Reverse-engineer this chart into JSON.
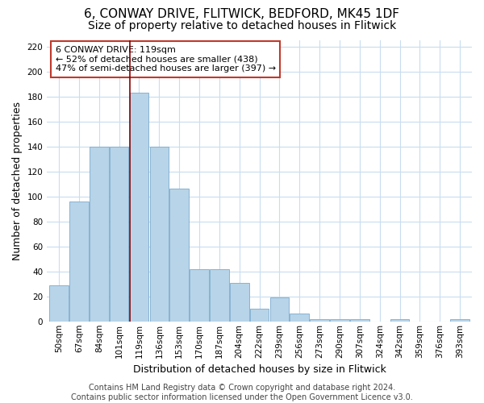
{
  "title": "6, CONWAY DRIVE, FLITWICK, BEDFORD, MK45 1DF",
  "subtitle": "Size of property relative to detached houses in Flitwick",
  "xlabel": "Distribution of detached houses by size in Flitwick",
  "ylabel": "Number of detached properties",
  "bar_labels": [
    "50sqm",
    "67sqm",
    "84sqm",
    "101sqm",
    "119sqm",
    "136sqm",
    "153sqm",
    "170sqm",
    "187sqm",
    "204sqm",
    "222sqm",
    "239sqm",
    "256sqm",
    "273sqm",
    "290sqm",
    "307sqm",
    "324sqm",
    "342sqm",
    "359sqm",
    "376sqm",
    "393sqm"
  ],
  "bar_values": [
    29,
    96,
    140,
    140,
    183,
    140,
    106,
    42,
    42,
    31,
    10,
    19,
    6,
    2,
    2,
    2,
    0,
    2,
    0,
    0,
    2
  ],
  "bar_color": "#b8d4e8",
  "bar_edge_color": "#7aaacf",
  "highlight_bar_index": 4,
  "highlight_line_color": "#8b0000",
  "ylim": [
    0,
    225
  ],
  "yticks": [
    0,
    20,
    40,
    60,
    80,
    100,
    120,
    140,
    160,
    180,
    200,
    220
  ],
  "annotation_box_text": "6 CONWAY DRIVE: 119sqm\n← 52% of detached houses are smaller (438)\n47% of semi-detached houses are larger (397) →",
  "footer_text": "Contains HM Land Registry data © Crown copyright and database right 2024.\nContains public sector information licensed under the Open Government Licence v3.0.",
  "background_color": "#ffffff",
  "grid_color": "#c8ddf0",
  "title_fontsize": 11,
  "subtitle_fontsize": 10,
  "axis_label_fontsize": 9,
  "tick_fontsize": 7.5,
  "footer_fontsize": 7,
  "annotation_fontsize": 8,
  "annotation_box_edge_color": "#c0392b",
  "ylabel_full": "Number of detached properties"
}
